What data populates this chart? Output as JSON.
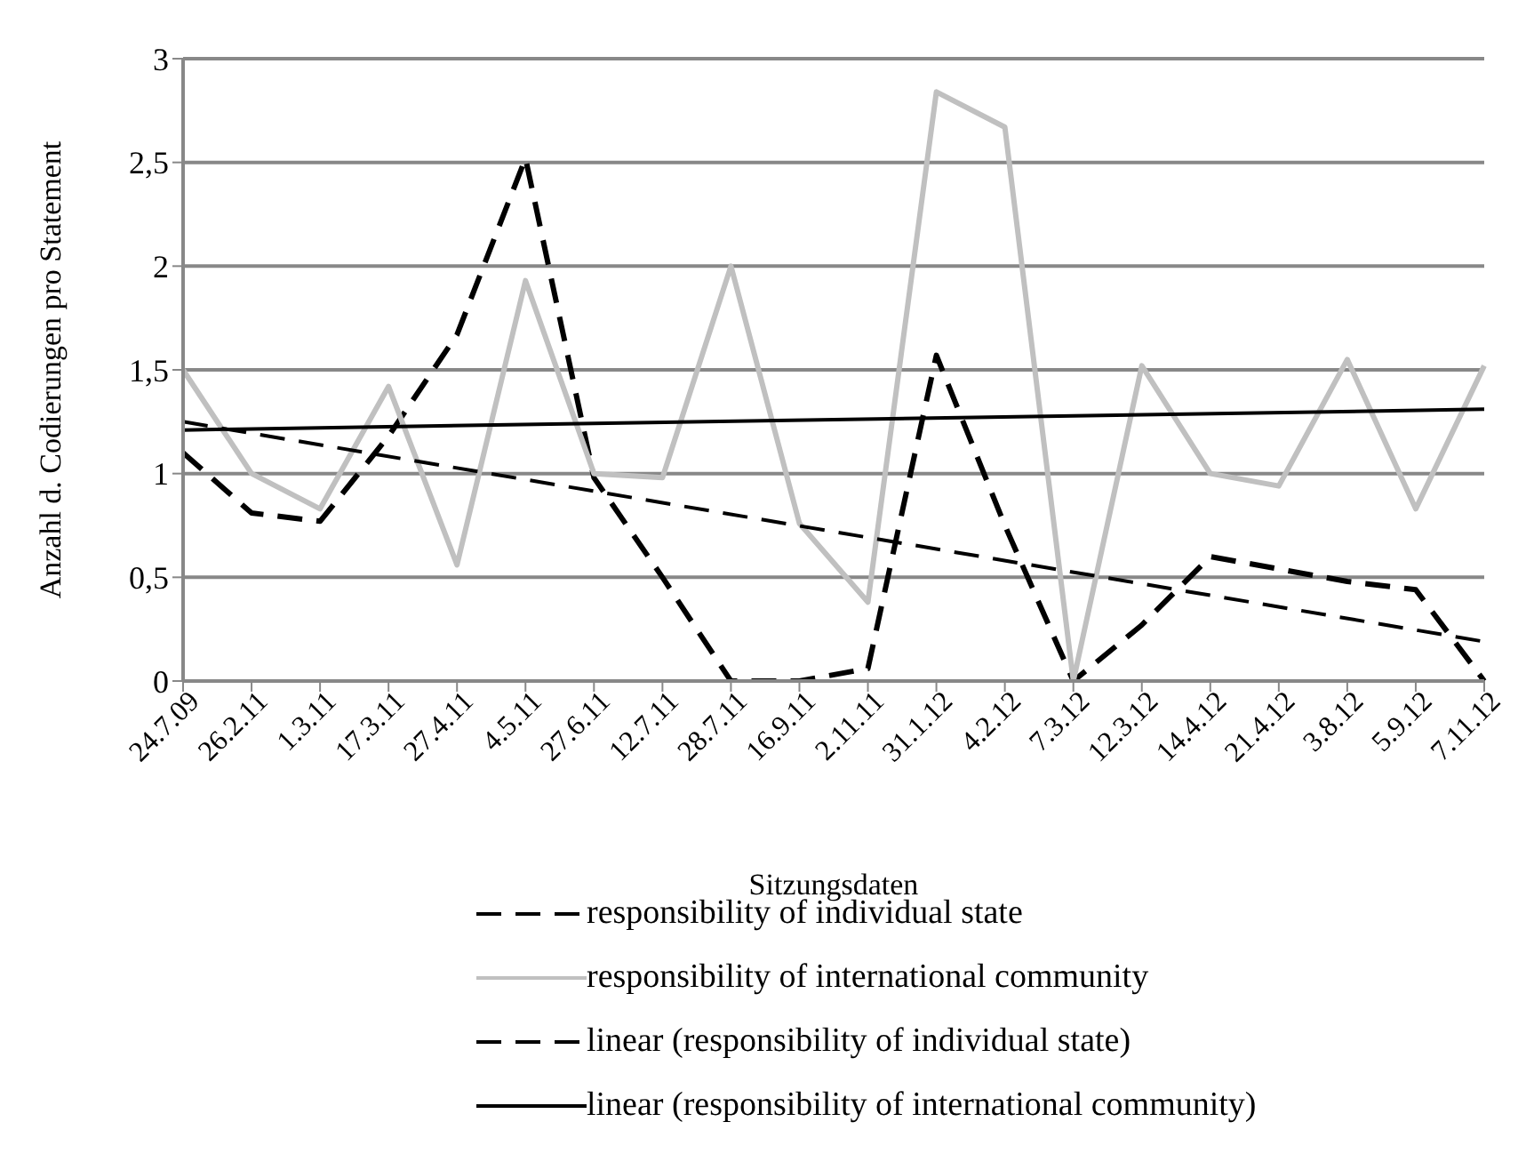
{
  "chart_data": {
    "type": "line",
    "xlabel": "Sitzungsdaten",
    "ylabel": "Anzahl d. Codierungen pro Statement",
    "categories": [
      "24.7.09",
      "26.2.11",
      "1.3.11",
      "17.3.11",
      "27.4.11",
      "4.5.11",
      "27.6.11",
      "12.7.11",
      "28.7.11",
      "16.9.11",
      "2.11.11",
      "31.1.12",
      "4.2.12",
      "7.3.12",
      "12.3.12",
      "14.4.12",
      "21.4.12",
      "3.8.12",
      "5.9.12",
      "7.11.12"
    ],
    "series": [
      {
        "name": "responsibility of individual state",
        "color": "#000000",
        "line_style": "dashed",
        "values": [
          1.1,
          0.81,
          0.77,
          1.18,
          1.67,
          2.52,
          0.98,
          0.5,
          0,
          0,
          0.06,
          1.57,
          0.75,
          0,
          0.27,
          0.6,
          0.54,
          0.48,
          0.44,
          0
        ]
      },
      {
        "name": "responsibility of international community",
        "color": "#c0c0c0",
        "line_style": "solid",
        "values": [
          1.5,
          1.0,
          0.83,
          1.42,
          0.56,
          1.93,
          1.0,
          0.98,
          2.0,
          0.76,
          0.38,
          2.84,
          2.67,
          0,
          1.52,
          1.0,
          0.94,
          1.55,
          0.83,
          1.52
        ]
      },
      {
        "name": "linear (responsibility of individual state)",
        "color": "#000000",
        "line_style": "dashed",
        "values": [
          1.25,
          null,
          null,
          null,
          null,
          null,
          null,
          null,
          null,
          null,
          null,
          null,
          null,
          null,
          null,
          null,
          null,
          null,
          null,
          0.19
        ]
      },
      {
        "name": "linear (responsibility of international community)",
        "color": "#000000",
        "line_style": "solid",
        "values": [
          1.21,
          null,
          null,
          null,
          null,
          null,
          null,
          null,
          null,
          null,
          null,
          null,
          null,
          null,
          null,
          null,
          null,
          null,
          null,
          1.31
        ]
      }
    ],
    "ylim": [
      0,
      3
    ],
    "yticks": [
      {
        "value": 0,
        "label": "0"
      },
      {
        "value": 0.5,
        "label": "0,5"
      },
      {
        "value": 1,
        "label": "1"
      },
      {
        "value": 1.5,
        "label": "1,5"
      },
      {
        "value": 2,
        "label": "2"
      },
      {
        "value": 2.5,
        "label": "2,5"
      },
      {
        "value": 3,
        "label": "3"
      }
    ],
    "grid": "y",
    "legend": "bottom",
    "marker": "none"
  }
}
